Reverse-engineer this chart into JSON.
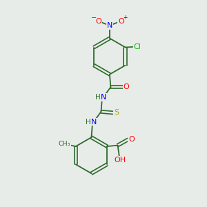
{
  "background_color": "#e8ece8",
  "bond_color": "#2d6b2d",
  "atom_colors": {
    "O": "#ff0000",
    "N": "#0000ff",
    "Cl": "#00bb00",
    "S": "#aaaa00",
    "H": "#2d6b2d",
    "C": "#2d6b2d"
  },
  "figsize": [
    3.0,
    3.0
  ],
  "dpi": 100
}
